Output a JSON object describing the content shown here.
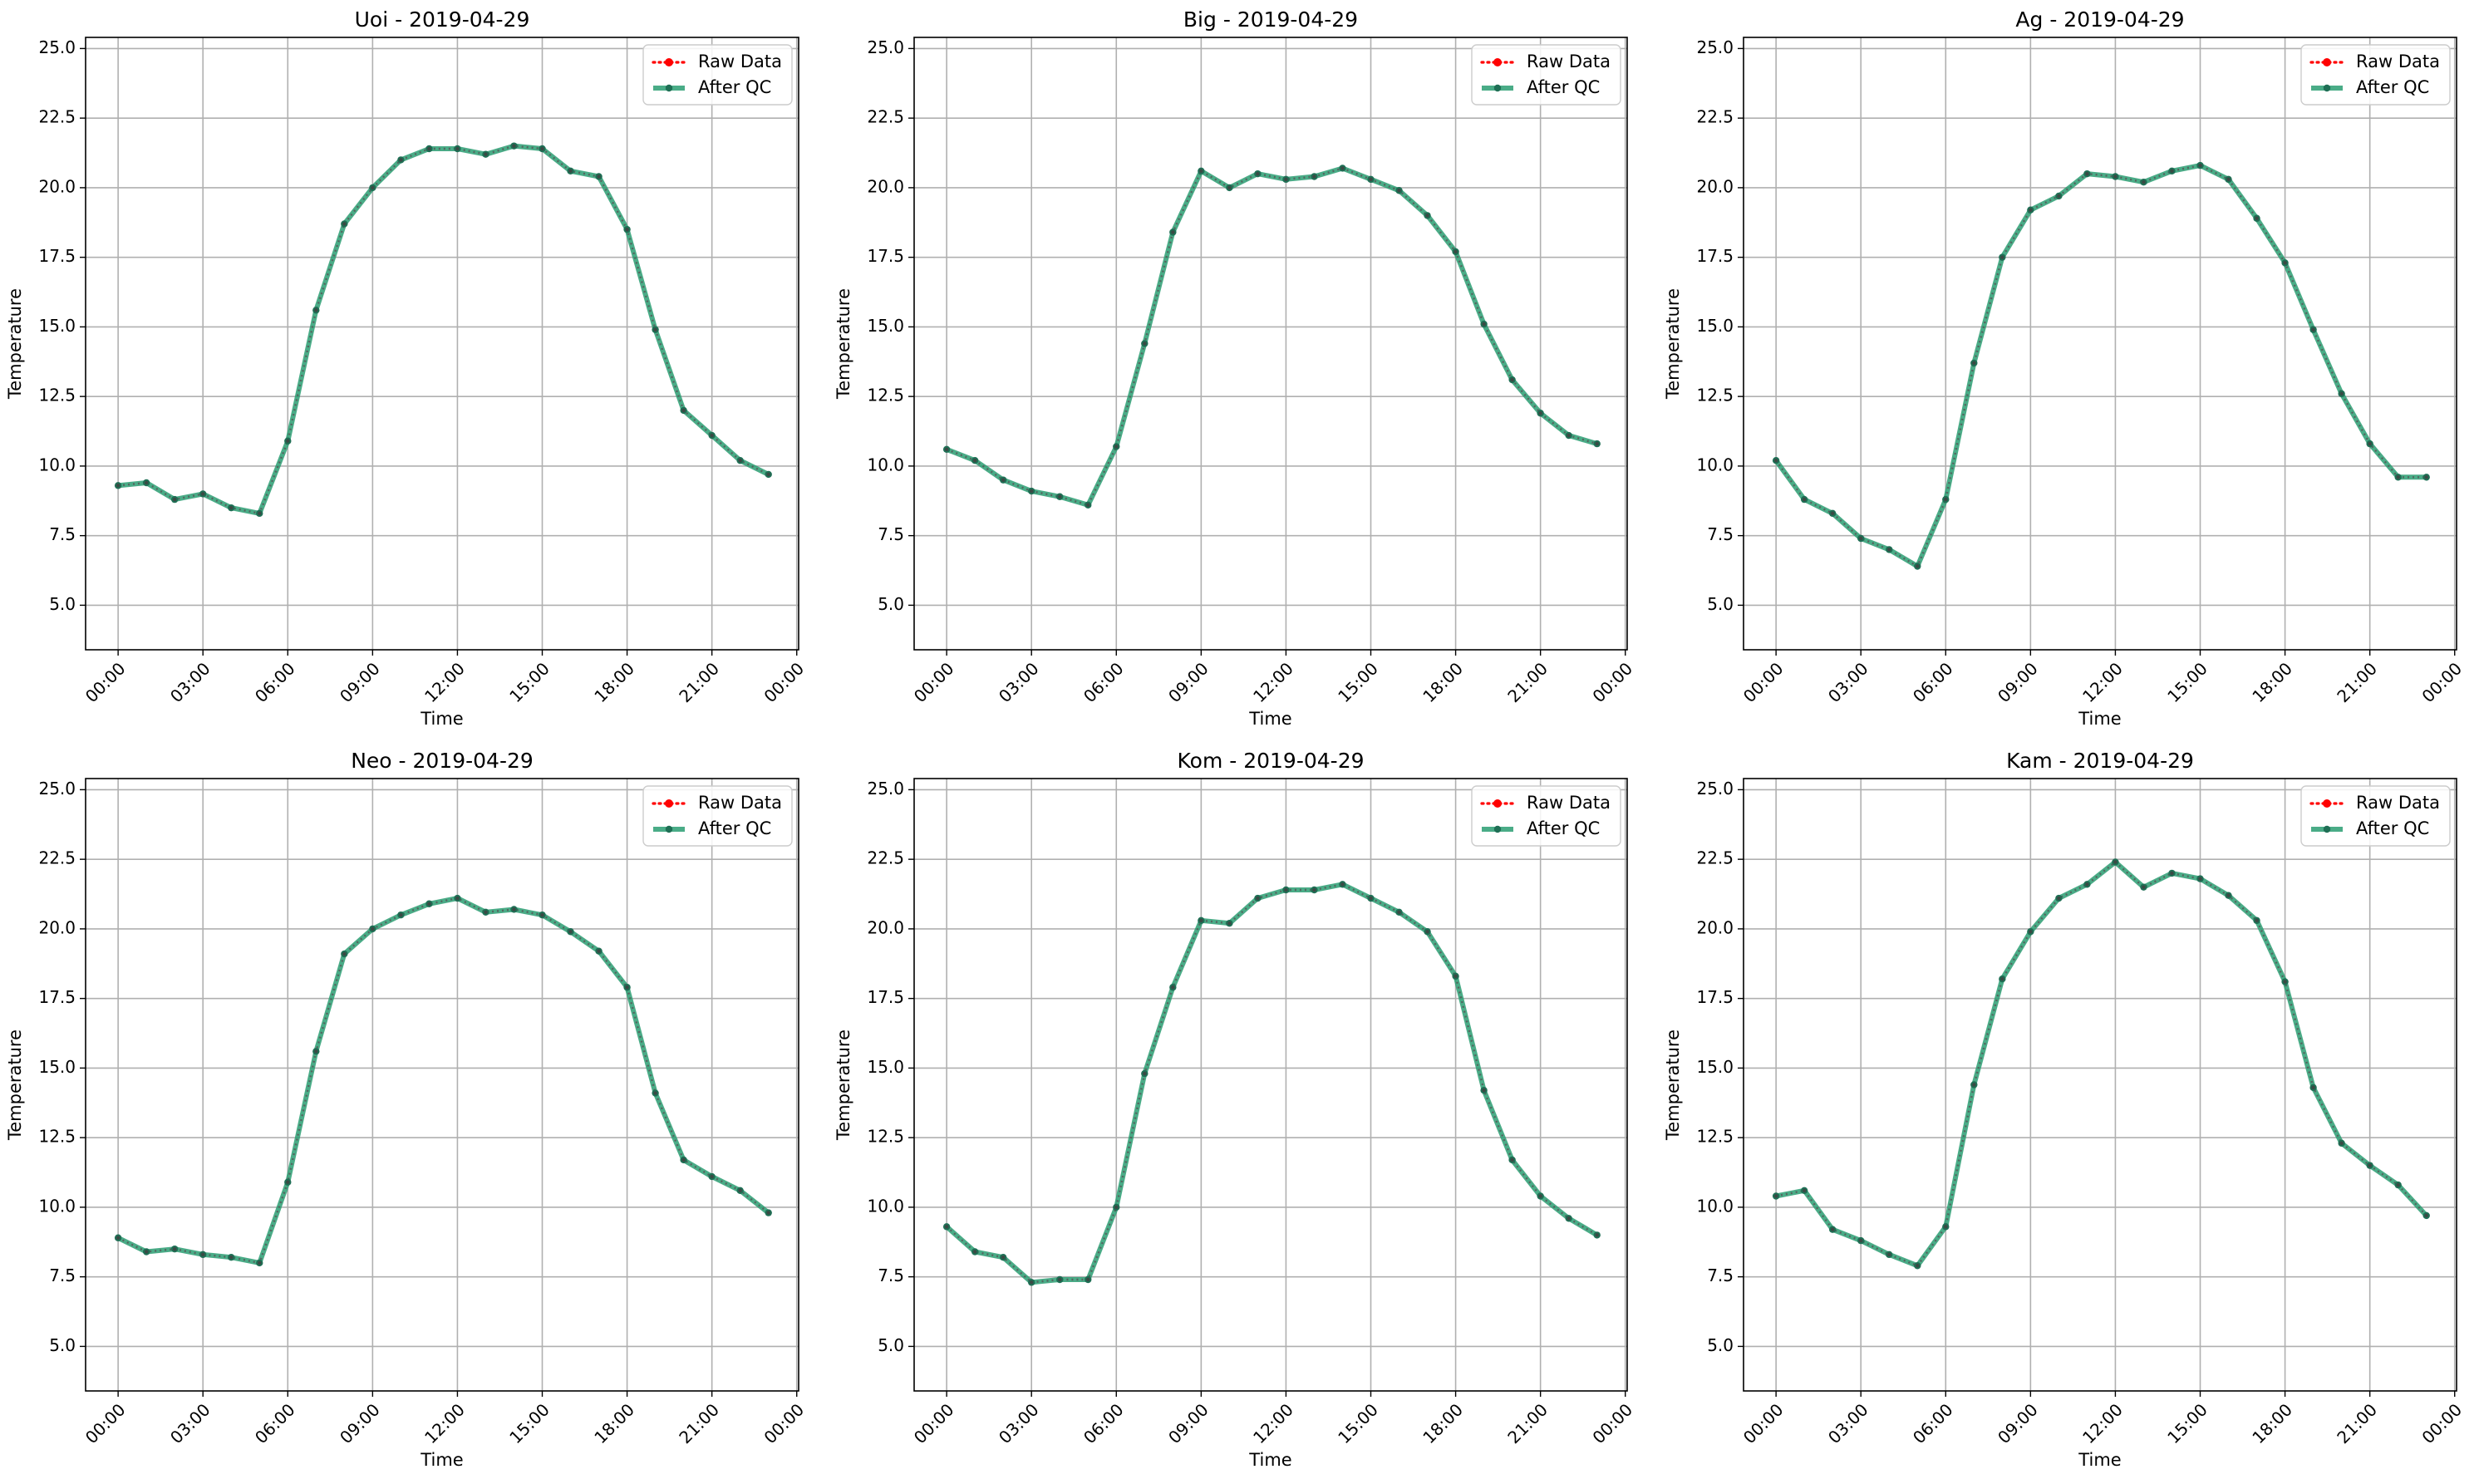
{
  "figure": {
    "background": "#ffffff"
  },
  "legend": {
    "raw_label": "Raw Data",
    "qc_label": "After QC",
    "placement": "top-right"
  },
  "colors": {
    "raw": "#ff0000",
    "qc": "#2a9d72",
    "qc_marker": "#1f6f55",
    "grid": "#b0b0b0"
  },
  "chart_data": [
    {
      "type": "line",
      "title": "Uoi - 2019-04-29",
      "xlabel": "Time",
      "ylabel": "Temperature",
      "x": [
        "00:00",
        "01:00",
        "02:00",
        "03:00",
        "04:00",
        "05:00",
        "06:00",
        "07:00",
        "08:00",
        "09:00",
        "10:00",
        "11:00",
        "12:00",
        "13:00",
        "14:00",
        "15:00",
        "16:00",
        "17:00",
        "18:00",
        "19:00",
        "20:00",
        "21:00",
        "22:00",
        "23:00"
      ],
      "xticks": [
        "00:00",
        "03:00",
        "06:00",
        "09:00",
        "12:00",
        "15:00",
        "18:00",
        "21:00",
        "00:00"
      ],
      "yticks": [
        "5.0",
        "7.5",
        "10.0",
        "12.5",
        "15.0",
        "17.5",
        "20.0",
        "22.5",
        "25.0"
      ],
      "ylim": [
        3.4,
        25.4
      ],
      "grid": true,
      "series": [
        {
          "name": "Raw Data",
          "values": [
            9.3,
            9.4,
            8.8,
            9.0,
            8.5,
            8.3,
            10.9,
            15.6,
            18.7,
            20.0,
            21.0,
            21.4,
            21.4,
            21.2,
            21.5,
            21.4,
            20.6,
            20.4,
            18.5,
            14.9,
            12.0,
            11.1,
            10.2,
            9.7
          ]
        },
        {
          "name": "After QC",
          "values": [
            9.3,
            9.4,
            8.8,
            9.0,
            8.5,
            8.3,
            10.9,
            15.6,
            18.7,
            20.0,
            21.0,
            21.4,
            21.4,
            21.2,
            21.5,
            21.4,
            20.6,
            20.4,
            18.5,
            14.9,
            12.0,
            11.1,
            10.2,
            9.7
          ]
        }
      ]
    },
    {
      "type": "line",
      "title": "Big - 2019-04-29",
      "xlabel": "Time",
      "ylabel": "Temperature",
      "x": [
        "00:00",
        "01:00",
        "02:00",
        "03:00",
        "04:00",
        "05:00",
        "06:00",
        "07:00",
        "08:00",
        "09:00",
        "10:00",
        "11:00",
        "12:00",
        "13:00",
        "14:00",
        "15:00",
        "16:00",
        "17:00",
        "18:00",
        "19:00",
        "20:00",
        "21:00",
        "22:00",
        "23:00"
      ],
      "xticks": [
        "00:00",
        "03:00",
        "06:00",
        "09:00",
        "12:00",
        "15:00",
        "18:00",
        "21:00",
        "00:00"
      ],
      "yticks": [
        "5.0",
        "7.5",
        "10.0",
        "12.5",
        "15.0",
        "17.5",
        "20.0",
        "22.5",
        "25.0"
      ],
      "ylim": [
        3.4,
        25.4
      ],
      "grid": true,
      "series": [
        {
          "name": "Raw Data",
          "values": [
            10.6,
            10.2,
            9.5,
            9.1,
            8.9,
            8.6,
            10.7,
            14.4,
            18.4,
            20.6,
            20.0,
            20.5,
            20.3,
            20.4,
            20.7,
            20.3,
            19.9,
            19.0,
            17.7,
            15.1,
            13.1,
            11.9,
            11.1,
            10.8
          ]
        },
        {
          "name": "After QC",
          "values": [
            10.6,
            10.2,
            9.5,
            9.1,
            8.9,
            8.6,
            10.7,
            14.4,
            18.4,
            20.6,
            20.0,
            20.5,
            20.3,
            20.4,
            20.7,
            20.3,
            19.9,
            19.0,
            17.7,
            15.1,
            13.1,
            11.9,
            11.1,
            10.8
          ]
        }
      ]
    },
    {
      "type": "line",
      "title": "Ag - 2019-04-29",
      "xlabel": "Time",
      "ylabel": "Temperature",
      "x": [
        "00:00",
        "01:00",
        "02:00",
        "03:00",
        "04:00",
        "05:00",
        "06:00",
        "07:00",
        "08:00",
        "09:00",
        "10:00",
        "11:00",
        "12:00",
        "13:00",
        "14:00",
        "15:00",
        "16:00",
        "17:00",
        "18:00",
        "19:00",
        "20:00",
        "21:00",
        "22:00",
        "23:00"
      ],
      "xticks": [
        "00:00",
        "03:00",
        "06:00",
        "09:00",
        "12:00",
        "15:00",
        "18:00",
        "21:00",
        "00:00"
      ],
      "yticks": [
        "5.0",
        "7.5",
        "10.0",
        "12.5",
        "15.0",
        "17.5",
        "20.0",
        "22.5",
        "25.0"
      ],
      "ylim": [
        3.4,
        25.4
      ],
      "grid": true,
      "series": [
        {
          "name": "Raw Data",
          "values": [
            10.2,
            8.8,
            8.3,
            7.4,
            7.0,
            6.4,
            8.8,
            13.7,
            17.5,
            19.2,
            19.7,
            20.5,
            20.4,
            20.2,
            20.6,
            20.8,
            20.3,
            18.9,
            17.3,
            14.9,
            12.6,
            10.8,
            9.6,
            9.6
          ]
        },
        {
          "name": "After QC",
          "values": [
            10.2,
            8.8,
            8.3,
            7.4,
            7.0,
            6.4,
            8.8,
            13.7,
            17.5,
            19.2,
            19.7,
            20.5,
            20.4,
            20.2,
            20.6,
            20.8,
            20.3,
            18.9,
            17.3,
            14.9,
            12.6,
            10.8,
            9.6,
            9.6
          ]
        }
      ]
    },
    {
      "type": "line",
      "title": "Neo - 2019-04-29",
      "xlabel": "Time",
      "ylabel": "Temperature",
      "x": [
        "00:00",
        "01:00",
        "02:00",
        "03:00",
        "04:00",
        "05:00",
        "06:00",
        "07:00",
        "08:00",
        "09:00",
        "10:00",
        "11:00",
        "12:00",
        "13:00",
        "14:00",
        "15:00",
        "16:00",
        "17:00",
        "18:00",
        "19:00",
        "20:00",
        "21:00",
        "22:00",
        "23:00"
      ],
      "xticks": [
        "00:00",
        "03:00",
        "06:00",
        "09:00",
        "12:00",
        "15:00",
        "18:00",
        "21:00",
        "00:00"
      ],
      "yticks": [
        "5.0",
        "7.5",
        "10.0",
        "12.5",
        "15.0",
        "17.5",
        "20.0",
        "22.5",
        "25.0"
      ],
      "ylim": [
        3.4,
        25.4
      ],
      "grid": true,
      "series": [
        {
          "name": "Raw Data",
          "values": [
            8.9,
            8.4,
            8.5,
            8.3,
            8.2,
            8.0,
            10.9,
            15.6,
            19.1,
            20.0,
            20.5,
            20.9,
            21.1,
            20.6,
            20.7,
            20.5,
            19.9,
            19.2,
            17.9,
            14.1,
            11.7,
            11.1,
            10.6,
            9.8
          ]
        },
        {
          "name": "After QC",
          "values": [
            8.9,
            8.4,
            8.5,
            8.3,
            8.2,
            8.0,
            10.9,
            15.6,
            19.1,
            20.0,
            20.5,
            20.9,
            21.1,
            20.6,
            20.7,
            20.5,
            19.9,
            19.2,
            17.9,
            14.1,
            11.7,
            11.1,
            10.6,
            9.8
          ]
        }
      ]
    },
    {
      "type": "line",
      "title": "Kom - 2019-04-29",
      "xlabel": "Time",
      "ylabel": "Temperature",
      "x": [
        "00:00",
        "01:00",
        "02:00",
        "03:00",
        "04:00",
        "05:00",
        "06:00",
        "07:00",
        "08:00",
        "09:00",
        "10:00",
        "11:00",
        "12:00",
        "13:00",
        "14:00",
        "15:00",
        "16:00",
        "17:00",
        "18:00",
        "19:00",
        "20:00",
        "21:00",
        "22:00",
        "23:00"
      ],
      "xticks": [
        "00:00",
        "03:00",
        "06:00",
        "09:00",
        "12:00",
        "15:00",
        "18:00",
        "21:00",
        "00:00"
      ],
      "yticks": [
        "5.0",
        "7.5",
        "10.0",
        "12.5",
        "15.0",
        "17.5",
        "20.0",
        "22.5",
        "25.0"
      ],
      "ylim": [
        3.4,
        25.4
      ],
      "grid": true,
      "series": [
        {
          "name": "Raw Data",
          "values": [
            9.3,
            8.4,
            8.2,
            7.3,
            7.4,
            7.4,
            10.0,
            14.8,
            17.9,
            20.3,
            20.2,
            21.1,
            21.4,
            21.4,
            21.6,
            21.1,
            20.6,
            19.9,
            18.3,
            14.2,
            11.7,
            10.4,
            9.6,
            9.0
          ]
        },
        {
          "name": "After QC",
          "values": [
            9.3,
            8.4,
            8.2,
            7.3,
            7.4,
            7.4,
            10.0,
            14.8,
            17.9,
            20.3,
            20.2,
            21.1,
            21.4,
            21.4,
            21.6,
            21.1,
            20.6,
            19.9,
            18.3,
            14.2,
            11.7,
            10.4,
            9.6,
            9.0
          ]
        }
      ]
    },
    {
      "type": "line",
      "title": "Kam - 2019-04-29",
      "xlabel": "Time",
      "ylabel": "Temperature",
      "x": [
        "00:00",
        "01:00",
        "02:00",
        "03:00",
        "04:00",
        "05:00",
        "06:00",
        "07:00",
        "08:00",
        "09:00",
        "10:00",
        "11:00",
        "12:00",
        "13:00",
        "14:00",
        "15:00",
        "16:00",
        "17:00",
        "18:00",
        "19:00",
        "20:00",
        "21:00",
        "22:00",
        "23:00"
      ],
      "xticks": [
        "00:00",
        "03:00",
        "06:00",
        "09:00",
        "12:00",
        "15:00",
        "18:00",
        "21:00",
        "00:00"
      ],
      "yticks": [
        "5.0",
        "7.5",
        "10.0",
        "12.5",
        "15.0",
        "17.5",
        "20.0",
        "22.5",
        "25.0"
      ],
      "ylim": [
        3.4,
        25.4
      ],
      "grid": true,
      "series": [
        {
          "name": "Raw Data",
          "values": [
            10.4,
            10.6,
            9.2,
            8.8,
            8.3,
            7.9,
            9.3,
            14.4,
            18.2,
            19.9,
            21.1,
            21.6,
            22.4,
            21.5,
            22.0,
            21.8,
            21.2,
            20.3,
            18.1,
            14.3,
            12.3,
            11.5,
            10.8,
            9.7
          ]
        },
        {
          "name": "After QC",
          "values": [
            10.4,
            10.6,
            9.2,
            8.8,
            8.3,
            7.9,
            9.3,
            14.4,
            18.2,
            19.9,
            21.1,
            21.6,
            22.4,
            21.5,
            22.0,
            21.8,
            21.2,
            20.3,
            18.1,
            14.3,
            12.3,
            11.5,
            10.8,
            9.7
          ]
        }
      ]
    }
  ]
}
